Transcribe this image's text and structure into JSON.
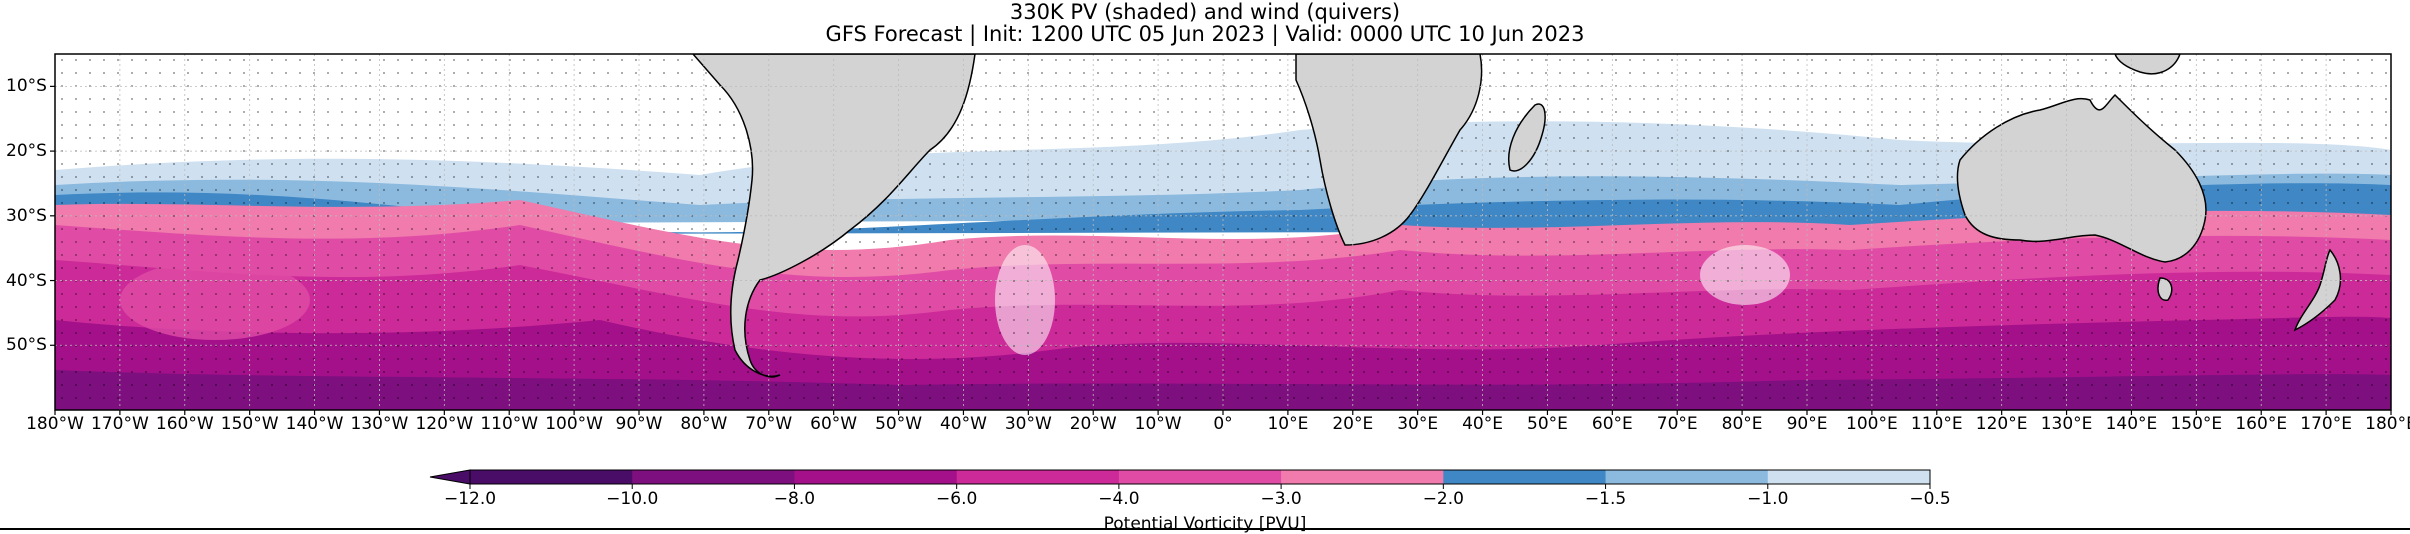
{
  "titles": {
    "line1": "330K PV (shaded) and wind (quivers)",
    "line2": "GFS Forecast | Init: 1200 UTC 05 Jun 2023 | Valid: 0000 UTC 10 Jun 2023"
  },
  "map": {
    "projection": "PlateCarree",
    "lon_range": [
      -180,
      180
    ],
    "lat_range": [
      -60,
      -5
    ],
    "land_color": "#d3d3d3",
    "coastline_color": "#000000",
    "gridlines": true,
    "lat_ticks": [
      "10°S",
      "20°S",
      "30°S",
      "40°S",
      "50°S"
    ],
    "lat_tick_values": [
      -10,
      -20,
      -30,
      -40,
      -50
    ],
    "lon_ticks": [
      "180°W",
      "170°W",
      "160°W",
      "150°W",
      "140°W",
      "130°W",
      "120°W",
      "110°W",
      "100°W",
      "90°W",
      "80°W",
      "70°W",
      "60°W",
      "50°W",
      "40°W",
      "30°W",
      "20°W",
      "10°W",
      "0°",
      "10°E",
      "20°E",
      "30°E",
      "40°E",
      "50°E",
      "60°E",
      "70°E",
      "80°E",
      "90°E",
      "100°E",
      "110°E",
      "120°E",
      "130°E",
      "140°E",
      "150°E",
      "160°E",
      "170°E",
      "180°E"
    ],
    "lon_tick_values": [
      -180,
      -170,
      -160,
      -150,
      -140,
      -130,
      -120,
      -110,
      -100,
      -90,
      -80,
      -70,
      -60,
      -50,
      -40,
      -30,
      -20,
      -10,
      0,
      10,
      20,
      30,
      40,
      50,
      60,
      70,
      80,
      90,
      100,
      110,
      120,
      130,
      140,
      150,
      160,
      170,
      180
    ]
  },
  "colorbar": {
    "label": "Potential Vorticity [PVU]",
    "orientation": "horizontal",
    "extend": "min",
    "levels": [
      -12.0,
      -10.0,
      -8.0,
      -6.0,
      -4.0,
      -3.0,
      -2.0,
      -1.5,
      -1.0,
      -0.5
    ],
    "tick_labels": [
      "−12.0",
      "−10.0",
      "−8.0",
      "−6.0",
      "−4.0",
      "−3.0",
      "−2.0",
      "−1.5",
      "−1.0",
      "−0.5"
    ],
    "colors": [
      "#4a0d67",
      "#7d0f7e",
      "#a3108a",
      "#cc2a98",
      "#e04ca5",
      "#f07bac",
      "#3f88c5",
      "#8cbadf",
      "#cfe1f1"
    ]
  }
}
